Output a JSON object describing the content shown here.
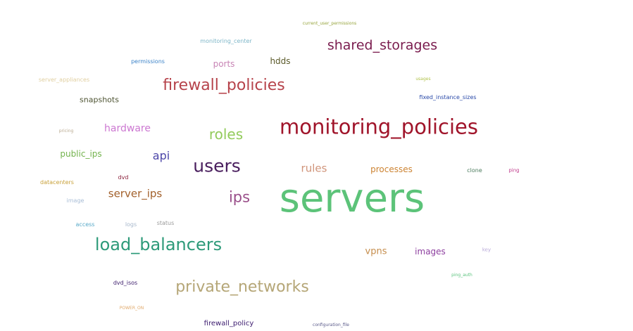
{
  "words": [
    {
      "text": "servers",
      "color": "#5cc379"
    },
    {
      "text": "monitoring_policies",
      "color": "#a0142a"
    },
    {
      "text": "users",
      "color": "#4a1f5e"
    },
    {
      "text": "load_balancers",
      "color": "#2d9a79"
    },
    {
      "text": "private_networks",
      "color": "#b5a677"
    },
    {
      "text": "firewall_policies",
      "color": "#b6434b"
    },
    {
      "text": "shared_storages",
      "color": "#7a1c4e"
    },
    {
      "text": "roles",
      "color": "#93cb5c"
    },
    {
      "text": "ips",
      "color": "#9a4f8a"
    },
    {
      "text": "api",
      "color": "#4b45a8"
    },
    {
      "text": "rules",
      "color": "#d0947a"
    },
    {
      "text": "server_ips",
      "color": "#a2602b"
    },
    {
      "text": "hardware",
      "color": "#cc78d1"
    },
    {
      "text": "processes",
      "color": "#cc8332"
    },
    {
      "text": "vpns",
      "color": "#c58d4c"
    },
    {
      "text": "images",
      "color": "#8d3f9f"
    },
    {
      "text": "ports",
      "color": "#c884b5"
    },
    {
      "text": "hdds",
      "color": "#5b5a2a"
    },
    {
      "text": "snapshots",
      "color": "#4e5433"
    },
    {
      "text": "public_ips",
      "color": "#73b34d"
    },
    {
      "text": "firewall_policy",
      "color": "#3b1a6e"
    },
    {
      "text": "monitoring_center",
      "color": "#7eb6c8"
    },
    {
      "text": "permissions",
      "color": "#3a82c8"
    },
    {
      "text": "server_appliances",
      "color": "#e0cfa0"
    },
    {
      "text": "current_user_permissions",
      "color": "#96a43c"
    },
    {
      "text": "usages",
      "color": "#b0c24a"
    },
    {
      "text": "fixed_instance_sizes",
      "color": "#2848a8"
    },
    {
      "text": "pricing",
      "color": "#b8a88e"
    },
    {
      "text": "dvd",
      "color": "#8a1f3a"
    },
    {
      "text": "datacenters",
      "color": "#c8a13a"
    },
    {
      "text": "image",
      "color": "#a8bdd6"
    },
    {
      "text": "access",
      "color": "#56a8c8"
    },
    {
      "text": "logs",
      "color": "#a8b8cc"
    },
    {
      "text": "status",
      "color": "#9a9a9a"
    },
    {
      "text": "clone",
      "color": "#4c7c5e"
    },
    {
      "text": "ping",
      "color": "#c03c8c"
    },
    {
      "text": "key",
      "color": "#b8a8d8"
    },
    {
      "text": "ping_auth",
      "color": "#5cc37e"
    },
    {
      "text": "dvd_isos",
      "color": "#3a1a6a"
    },
    {
      "text": "POWER_ON",
      "color": "#e0a86a"
    },
    {
      "text": "configuration_file",
      "color": "#5a5a8a"
    }
  ]
}
